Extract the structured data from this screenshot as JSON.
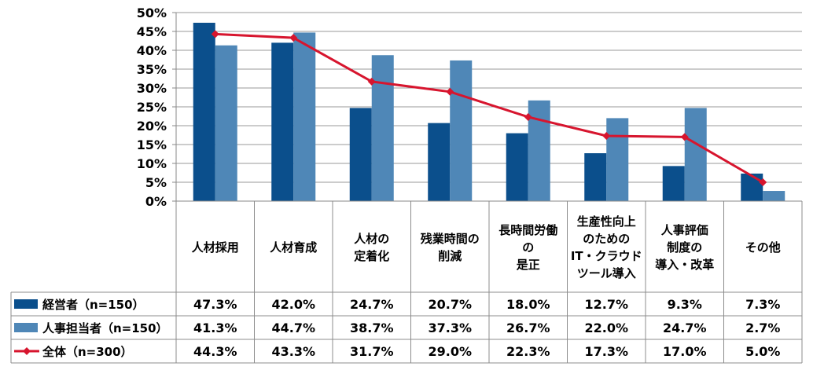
{
  "chart_data": {
    "type": "bar",
    "categories": [
      [
        "人材採用"
      ],
      [
        "人材育成"
      ],
      [
        "人材の",
        "定着化"
      ],
      [
        "残業時間の",
        "削減"
      ],
      [
        "長時間労働",
        "の",
        "是正"
      ],
      [
        "生産性向上",
        "のための",
        "IT・クラウド",
        "ツール導入"
      ],
      [
        "人事評価",
        "制度の",
        "導入・改革"
      ],
      [
        "その他"
      ]
    ],
    "series": [
      {
        "name": "経営者（n=150）",
        "type": "bar",
        "color": "#0B4F8C",
        "values": [
          47.3,
          42.0,
          24.7,
          20.7,
          18.0,
          12.7,
          9.3,
          7.3
        ],
        "labels": [
          "47.3%",
          "42.0%",
          "24.7%",
          "20.7%",
          "18.0%",
          "12.7%",
          "9.3%",
          "7.3%"
        ]
      },
      {
        "name": "人事担当者（n=150）",
        "type": "bar",
        "color": "#4F87B7",
        "values": [
          41.3,
          44.7,
          38.7,
          37.3,
          26.7,
          22.0,
          24.7,
          2.7
        ],
        "labels": [
          "41.3%",
          "44.7%",
          "38.7%",
          "37.3%",
          "26.7%",
          "22.0%",
          "24.7%",
          "2.7%"
        ]
      },
      {
        "name": "全体（n=300）",
        "type": "line",
        "color": "#D7152E",
        "values": [
          44.3,
          43.3,
          31.7,
          29.0,
          22.3,
          17.3,
          17.0,
          5.0
        ],
        "labels": [
          "44.3%",
          "43.3%",
          "31.7%",
          "29.0%",
          "22.3%",
          "17.3%",
          "17.0%",
          "5.0%"
        ]
      }
    ],
    "ylim": [
      0,
      50
    ],
    "yticks": [
      "0%",
      "5%",
      "10%",
      "15%",
      "20%",
      "25%",
      "30%",
      "35%",
      "40%",
      "45%",
      "50%"
    ],
    "grid": true,
    "legend": "data-table-left"
  }
}
